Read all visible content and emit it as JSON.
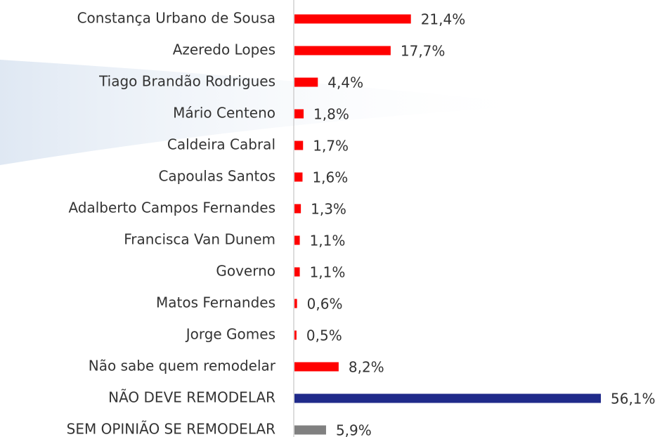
{
  "chart_data": {
    "type": "bar",
    "orientation": "horizontal",
    "categories": [
      "Constança Urbano de Sousa",
      "Azeredo Lopes",
      "Tiago Brandão Rodrigues",
      "Mário Centeno",
      "Caldeira Cabral",
      "Capoulas Santos",
      "Adalberto Campos Fernandes",
      "Francisca Van Dunem",
      "Governo",
      "Matos Fernandes",
      "Jorge Gomes",
      "Não sabe quem remodelar",
      "NÃO DEVE REMODELAR",
      "SEM OPINIÃO SE REMODELAR"
    ],
    "values": [
      21.4,
      17.7,
      4.4,
      1.8,
      1.7,
      1.6,
      1.3,
      1.1,
      1.1,
      0.6,
      0.5,
      8.2,
      56.1,
      5.9
    ],
    "value_labels": [
      "21,4%",
      "17,7%",
      "4,4%",
      "1,8%",
      "1,7%",
      "1,6%",
      "1,3%",
      "1,1%",
      "1,1%",
      "0,6%",
      "0,5%",
      "8,2%",
      "56,1%",
      "5,9%"
    ],
    "colors": [
      "#ff0000",
      "#ff0000",
      "#ff0000",
      "#ff0000",
      "#ff0000",
      "#ff0000",
      "#ff0000",
      "#ff0000",
      "#ff0000",
      "#ff0000",
      "#ff0000",
      "#ff0000",
      "#1f2a8a",
      "#808080"
    ]
  }
}
